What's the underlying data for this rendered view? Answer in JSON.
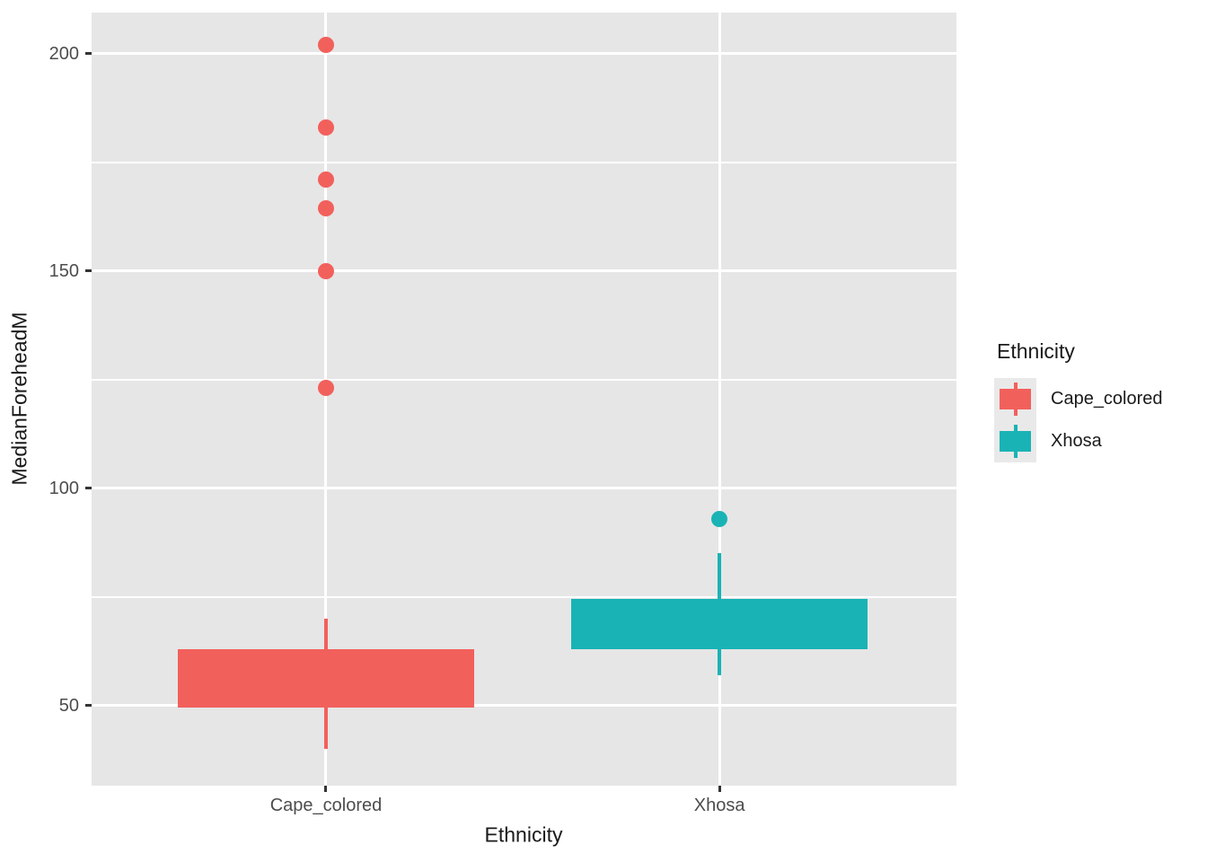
{
  "legend": {
    "title": "Ethnicity",
    "position": "right",
    "items": [
      {
        "label": "Cape_colored",
        "color": "#F2605C"
      },
      {
        "label": "Xhosa",
        "color": "#19B3B5"
      }
    ]
  },
  "colors": {
    "panel_background": "#E6E6E6",
    "gridline": "#FFFFFF",
    "tick_label": "#4D4D4D",
    "axis_title": "#1A1A1A",
    "legend_key_background": "#E9E9E9"
  },
  "chart_data": {
    "type": "boxplot",
    "title": "",
    "xlabel": "Ethnicity",
    "ylabel": "MedianForeheadM",
    "categories": [
      "Cape_colored",
      "Xhosa"
    ],
    "ylim": [
      31.5,
      209.5
    ],
    "yticks": [
      50,
      100,
      150,
      200
    ],
    "yticks_minor": [
      75,
      125,
      175
    ],
    "grid": true,
    "legend_position": "right",
    "series": [
      {
        "name": "Cape_colored",
        "color": "#F2605C",
        "whisker_low": 40,
        "q1": 49.5,
        "median": null,
        "q3": 63,
        "whisker_high": 70,
        "outliers": [
          123,
          150,
          164.5,
          171,
          183,
          202
        ]
      },
      {
        "name": "Xhosa",
        "color": "#19B3B5",
        "whisker_low": 57,
        "q1": 63,
        "median": null,
        "q3": 74.5,
        "whisker_high": 85,
        "outliers": [
          93
        ]
      }
    ]
  }
}
